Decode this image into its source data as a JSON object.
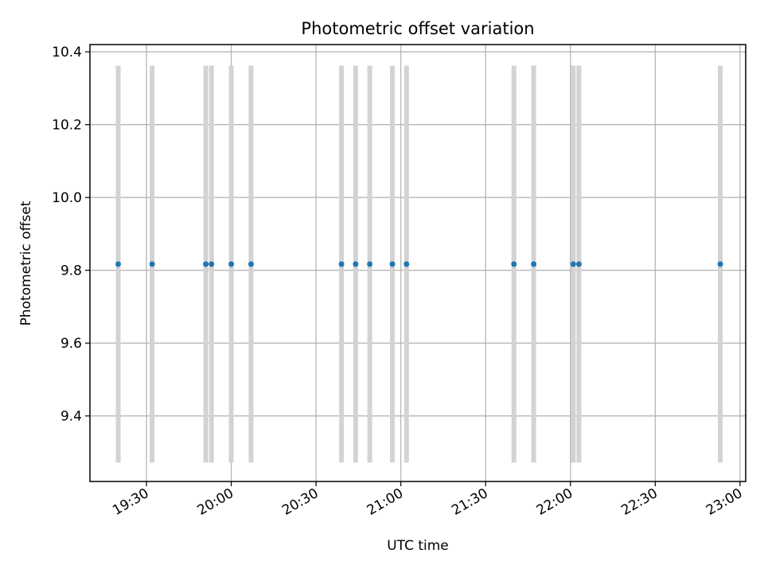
{
  "chart_data": {
    "type": "scatter",
    "title": "Photometric offset variation",
    "xlabel": "UTC time",
    "ylabel": "Photometric offset",
    "xlim": [
      "19:10",
      "23:02"
    ],
    "ylim": [
      9.22,
      10.42
    ],
    "x_ticks": [
      "19:30",
      "20:00",
      "20:30",
      "21:00",
      "21:30",
      "22:00",
      "22:30",
      "23:00"
    ],
    "y_ticks": [
      9.4,
      9.6,
      9.8,
      10.0,
      10.2,
      10.4
    ],
    "grid": true,
    "colors": {
      "points": "#1f77b4",
      "errorbars": "#d3d3d3",
      "grid": "#b0b0b0"
    },
    "series": [
      {
        "x": [
          "19:20",
          "19:32",
          "19:51",
          "19:53",
          "20:00",
          "20:07",
          "20:39",
          "20:44",
          "20:49",
          "20:57",
          "21:02",
          "21:40",
          "21:47",
          "22:01",
          "22:03",
          "22:53"
        ],
        "y": [
          9.817,
          9.817,
          9.817,
          9.817,
          9.817,
          9.817,
          9.817,
          9.817,
          9.817,
          9.817,
          9.817,
          9.817,
          9.817,
          9.817,
          9.817,
          9.817
        ],
        "yerr": [
          0.545,
          0.545,
          0.545,
          0.545,
          0.545,
          0.545,
          0.545,
          0.545,
          0.545,
          0.545,
          0.545,
          0.545,
          0.545,
          0.545,
          0.545,
          0.545
        ]
      }
    ]
  }
}
